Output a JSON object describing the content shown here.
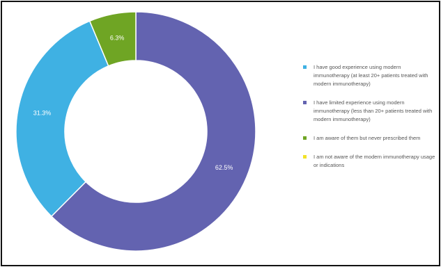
{
  "chart_data": {
    "type": "pie",
    "donut": true,
    "legend_position": "right",
    "series": [
      {
        "name": "I have good experience using modern immunotherapy (at least 20+ patients treated with modern immunotherapy)",
        "value": 31.3,
        "label": "31.3%",
        "color": "#3fb1e3"
      },
      {
        "name": "I have limited experience using modern immunotherapy (less than 20+ patients treated with modern immunotherapy)",
        "value": 62.5,
        "label": "62.5%",
        "color": "#6363b0"
      },
      {
        "name": "I am aware of them but never prescribed them",
        "value": 6.3,
        "label": "6.3%",
        "color": "#6fa524"
      },
      {
        "name": "I am not aware of the modern immunotherapy usage or indications",
        "value": 0,
        "label": "",
        "color": "#f2e229"
      }
    ]
  }
}
